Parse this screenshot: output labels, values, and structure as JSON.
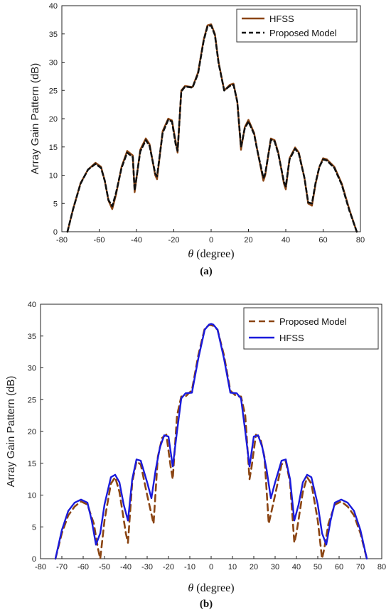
{
  "chart_data": [
    {
      "type": "line",
      "caption": "(a)",
      "xlabel_symbol": "θ",
      "xlabel_rest": " (degree)",
      "ylabel": "Array Gain Pattern (dB)",
      "xlim": [
        -80,
        80
      ],
      "ylim": [
        0,
        40
      ],
      "xticks": [
        "-80",
        "-60",
        "-40",
        "-20",
        "0",
        "20",
        "40",
        "60",
        "80"
      ],
      "yticks": [
        "0",
        "5",
        "10",
        "15",
        "20",
        "25",
        "30",
        "35",
        "40"
      ],
      "grid": false,
      "legend_position": "top-right",
      "series": [
        {
          "name": "HFSS",
          "color": "#8b4513",
          "style": "solid",
          "x": [
            -77,
            -74,
            -70,
            -66,
            -62,
            -59,
            -57,
            -55,
            -53,
            -51,
            -48,
            -45,
            -42,
            -41,
            -38,
            -35,
            -33,
            -30,
            -29,
            -26,
            -23,
            -21,
            -19,
            -18,
            -16,
            -14,
            -10,
            -7,
            -4,
            -2,
            0,
            2,
            4,
            7,
            10,
            12,
            14,
            16,
            18,
            20,
            23,
            25,
            28,
            29,
            32,
            34,
            36,
            39,
            40,
            42,
            45,
            47,
            50,
            52,
            54,
            56,
            58,
            60,
            62,
            66,
            70,
            74,
            78
          ],
          "y": [
            0,
            4,
            8.6,
            11,
            12.2,
            11.5,
            9,
            5.5,
            4,
            6.5,
            11.5,
            14.3,
            13.5,
            7,
            14.5,
            16.5,
            15.5,
            10,
            9.3,
            17.8,
            20,
            19.7,
            16,
            14,
            25,
            25.8,
            25.6,
            28.2,
            34,
            36.5,
            36.7,
            35,
            30,
            25,
            26,
            26.2,
            23,
            14.5,
            18.5,
            19.8,
            17.5,
            14,
            9,
            10,
            16.5,
            16.2,
            14,
            8.5,
            7.5,
            13,
            14.9,
            14,
            9.5,
            5,
            4.6,
            8.5,
            11.5,
            13,
            12.8,
            11.5,
            8.5,
            4,
            0
          ]
        },
        {
          "name": "Proposed Model",
          "color": "#111111",
          "style": "dashed",
          "x": [
            -77,
            -74,
            -70,
            -66,
            -62,
            -59,
            -57,
            -55,
            -53,
            -51,
            -48,
            -45,
            -42,
            -41,
            -38,
            -35,
            -33,
            -30,
            -29,
            -26,
            -23,
            -21,
            -19,
            -18,
            -16,
            -14,
            -10,
            -7,
            -4,
            -2,
            0,
            2,
            4,
            7,
            10,
            12,
            14,
            16,
            18,
            20,
            23,
            25,
            28,
            29,
            32,
            34,
            36,
            39,
            40,
            42,
            45,
            47,
            50,
            52,
            54,
            56,
            58,
            60,
            62,
            66,
            70,
            74,
            78
          ],
          "y": [
            0,
            4,
            8.5,
            11,
            12,
            11.3,
            9,
            5.6,
            4.5,
            6.8,
            11.3,
            14,
            13.2,
            7.3,
            14.2,
            16.2,
            15.2,
            10.3,
            9.8,
            17.5,
            19.8,
            19.5,
            15.5,
            14.3,
            24.8,
            25.7,
            25.5,
            28,
            33.8,
            36.3,
            36.5,
            34.8,
            29.8,
            25,
            25.8,
            26,
            23,
            15,
            18.3,
            19.5,
            17.3,
            14,
            9.5,
            10.3,
            16.3,
            16,
            13.8,
            8.8,
            8,
            12.8,
            14.7,
            13.8,
            9.5,
            5.2,
            5,
            8.7,
            11.5,
            12.8,
            12.6,
            11.3,
            8.3,
            3.8,
            0
          ]
        }
      ]
    },
    {
      "type": "line",
      "caption": "(b)",
      "xlabel_symbol": "θ",
      "xlabel_rest": " (degree)",
      "ylabel": "Array Gain Pattern (dB)",
      "xlim": [
        -80,
        80
      ],
      "ylim": [
        0,
        40
      ],
      "xticks": [
        "-80",
        "-70",
        "-60",
        "-50",
        "-40",
        "-30",
        "-20",
        "-10",
        "0",
        "10",
        "20",
        "30",
        "40",
        "50",
        "60",
        "70",
        "80"
      ],
      "yticks": [
        "0",
        "5",
        "10",
        "15",
        "20",
        "25",
        "30",
        "35",
        "40"
      ],
      "grid": false,
      "legend_position": "top-right",
      "series": [
        {
          "name": "Proposed Model",
          "color": "#8b4513",
          "style": "dashed",
          "x": [
            -73,
            -70,
            -67,
            -64,
            -61,
            -58,
            -55,
            -53,
            -52,
            -50,
            -47,
            -45,
            -43,
            -40,
            -39,
            -37,
            -35,
            -33,
            -30,
            -28,
            -27,
            -25,
            -23,
            -21,
            -19,
            -18,
            -16,
            -14,
            -12,
            -9,
            -6,
            -3,
            -1,
            0,
            1,
            3,
            6,
            9,
            12,
            14,
            16,
            18,
            19,
            21,
            23,
            25,
            27,
            28,
            30,
            33,
            35,
            37,
            39,
            40,
            43,
            45,
            47,
            50,
            52,
            53,
            55,
            58,
            61,
            64,
            67,
            70,
            73
          ],
          "y": [
            0,
            4,
            6.8,
            8.2,
            9,
            8.5,
            5.5,
            1.5,
            0,
            6,
            11.8,
            12.8,
            10.5,
            4,
            2.5,
            12,
            15.3,
            14.8,
            10,
            7,
            5.5,
            16,
            19,
            19.5,
            14.5,
            12.5,
            22.5,
            25.5,
            25.5,
            26.5,
            32,
            36.2,
            36.7,
            36.7,
            36.6,
            36,
            32,
            26.4,
            25.5,
            25.5,
            22.5,
            12.5,
            14.5,
            19.5,
            19,
            16,
            5.5,
            7,
            10,
            14.8,
            15.3,
            12,
            2.5,
            4,
            10.5,
            12.8,
            11.8,
            6,
            0,
            1.5,
            5.5,
            8.5,
            9,
            8.2,
            6.8,
            4,
            0
          ]
        },
        {
          "name": "HFSS",
          "color": "#1a1adb",
          "style": "solid",
          "x": [
            -73,
            -70,
            -67,
            -64,
            -61,
            -58,
            -56,
            -54,
            -52,
            -50,
            -47,
            -45,
            -43,
            -41,
            -39,
            -37,
            -35,
            -33,
            -30,
            -28,
            -26,
            -24,
            -22,
            -20,
            -18,
            -16,
            -14,
            -12,
            -9,
            -6,
            -3,
            -1,
            0,
            1,
            3,
            6,
            9,
            12,
            14,
            16,
            18,
            20,
            22,
            24,
            26,
            28,
            30,
            33,
            35,
            37,
            39,
            41,
            43,
            45,
            47,
            50,
            52,
            54,
            56,
            58,
            61,
            64,
            67,
            70,
            73
          ],
          "y": [
            0,
            4.5,
            7.5,
            8.8,
            9.3,
            8.8,
            6,
            2.2,
            4,
            8.5,
            12.8,
            13.2,
            12,
            8.5,
            6,
            12.5,
            15.6,
            15.4,
            12,
            9.5,
            14,
            17.5,
            19.4,
            19.2,
            14.5,
            20,
            25.2,
            26,
            26.1,
            31.5,
            36,
            36.8,
            36.9,
            36.8,
            36,
            31.5,
            26.1,
            26,
            25.2,
            20,
            14.5,
            19.2,
            19.4,
            17.5,
            14,
            9.5,
            12,
            15.4,
            15.6,
            12.5,
            6,
            8.5,
            12,
            13.2,
            12.8,
            8.5,
            4,
            2.2,
            6,
            8.8,
            9.3,
            8.8,
            7.5,
            4.5,
            0
          ]
        }
      ]
    }
  ]
}
